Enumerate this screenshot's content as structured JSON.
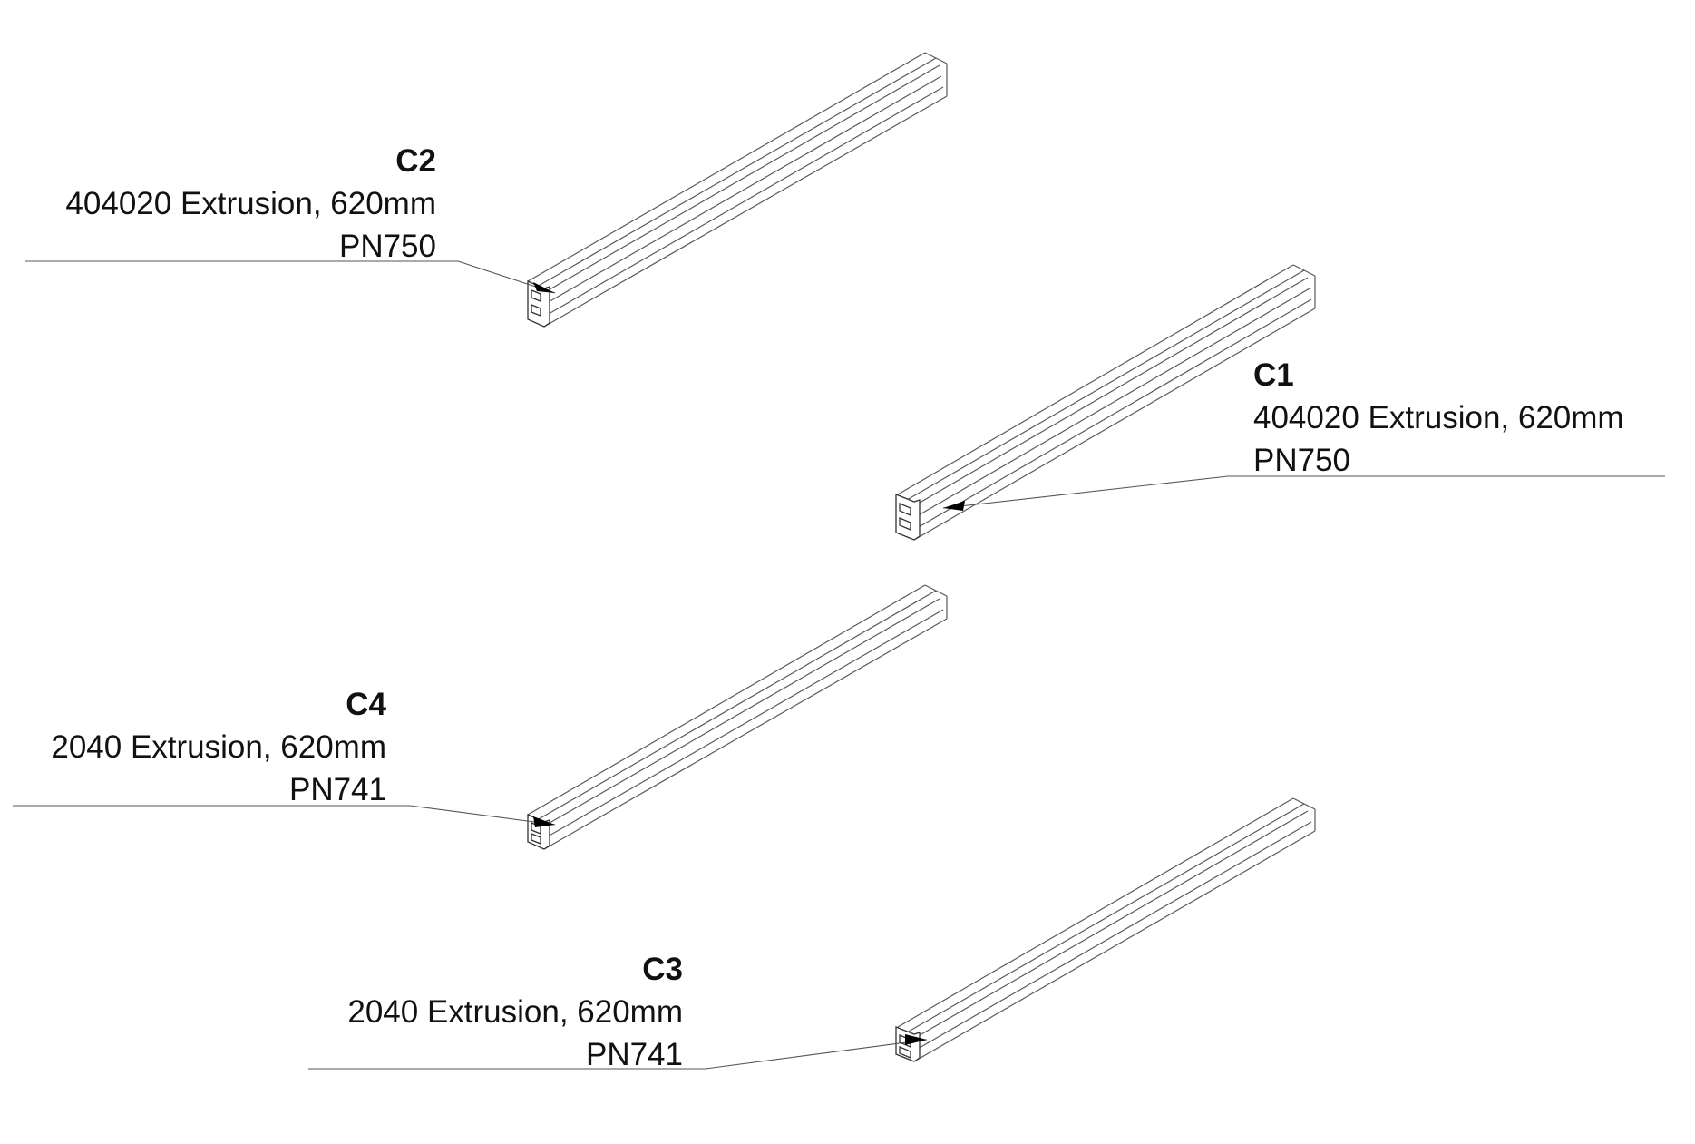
{
  "callouts": [
    {
      "id": "C2",
      "description": "404020 Extrusion, 620mm",
      "part_number": "PN750"
    },
    {
      "id": "C1",
      "description": "404020 Extrusion, 620mm",
      "part_number": "PN750"
    },
    {
      "id": "C4",
      "description": "2040 Extrusion, 620mm",
      "part_number": "PN741"
    },
    {
      "id": "C3",
      "description": "2040 Extrusion, 620mm",
      "part_number": "PN741"
    }
  ],
  "colors": {
    "line": "#555555",
    "text": "#111111",
    "background": "#ffffff"
  }
}
